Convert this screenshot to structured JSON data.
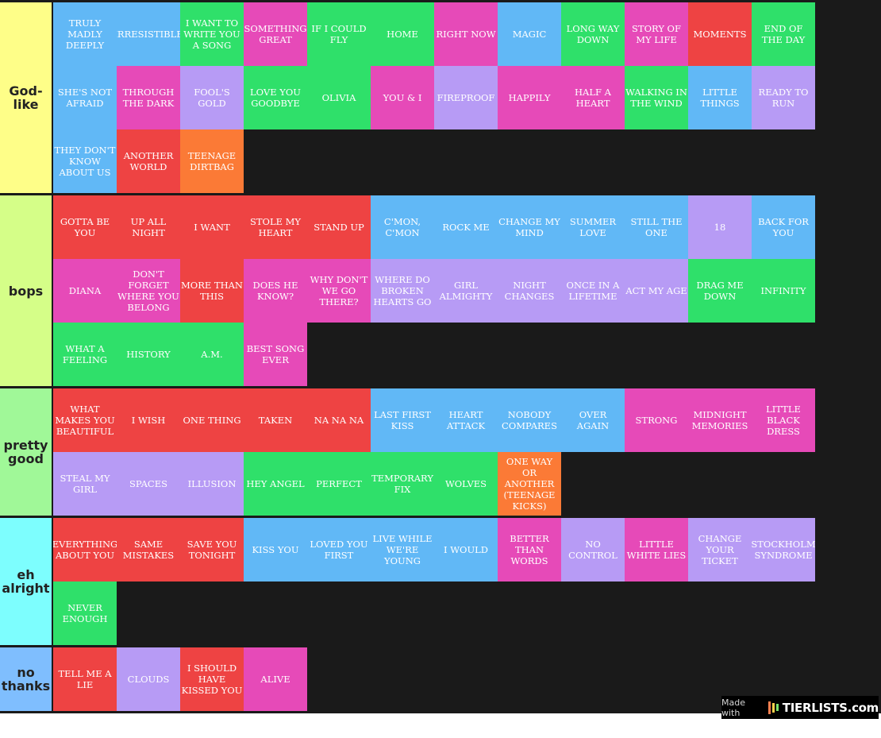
{
  "colors": {
    "blue": "#61b8f6",
    "purple": "#b79bf5",
    "green": "#2fe06a",
    "magenta": "#e64ab8",
    "red": "#ee4343",
    "orange": "#fb7a36"
  },
  "tiers": [
    {
      "label": "God-\nlike",
      "color": "#fefe88",
      "items": [
        {
          "text": "TRULY MADLY DEEPLY",
          "color": "blue"
        },
        {
          "text": "IRRESISTIBLE",
          "color": "blue"
        },
        {
          "text": "I WANT TO WRITE YOU A SONG",
          "color": "green"
        },
        {
          "text": "SOMETHING GREAT",
          "color": "magenta"
        },
        {
          "text": "IF I COULD FLY",
          "color": "green"
        },
        {
          "text": "HOME",
          "color": "green"
        },
        {
          "text": "RIGHT NOW",
          "color": "magenta"
        },
        {
          "text": "MAGIC",
          "color": "blue"
        },
        {
          "text": "LONG WAY DOWN",
          "color": "green"
        },
        {
          "text": "STORY OF MY LIFE",
          "color": "magenta"
        },
        {
          "text": "MOMENTS",
          "color": "red"
        },
        {
          "text": "END OF THE DAY",
          "color": "green"
        },
        {
          "text": "SHE'S NOT AFRAID",
          "color": "blue"
        },
        {
          "text": "THROUGH THE DARK",
          "color": "magenta"
        },
        {
          "text": "FOOL'S GOLD",
          "color": "purple"
        },
        {
          "text": "LOVE YOU GOODBYE",
          "color": "green"
        },
        {
          "text": "OLIVIA",
          "color": "green"
        },
        {
          "text": "YOU & I",
          "color": "magenta"
        },
        {
          "text": "FIREPROOF",
          "color": "purple"
        },
        {
          "text": "HAPPILY",
          "color": "magenta"
        },
        {
          "text": "HALF A HEART",
          "color": "magenta"
        },
        {
          "text": "WALKING IN THE WIND",
          "color": "green"
        },
        {
          "text": "LITTLE THINGS",
          "color": "blue"
        },
        {
          "text": "READY TO RUN",
          "color": "purple"
        },
        {
          "text": "THEY DON'T KNOW ABOUT US",
          "color": "blue"
        },
        {
          "text": "ANOTHER WORLD",
          "color": "red"
        },
        {
          "text": "TEENAGE DIRTBAG",
          "color": "orange"
        }
      ]
    },
    {
      "label": "bops",
      "color": "#d5fe88",
      "items": [
        {
          "text": "GOTTA BE YOU",
          "color": "red"
        },
        {
          "text": "UP ALL NIGHT",
          "color": "red"
        },
        {
          "text": "I WANT",
          "color": "red"
        },
        {
          "text": "STOLE MY HEART",
          "color": "red"
        },
        {
          "text": "STAND UP",
          "color": "red"
        },
        {
          "text": "C'MON, C'MON",
          "color": "blue"
        },
        {
          "text": "ROCK ME",
          "color": "blue"
        },
        {
          "text": "CHANGE MY MIND",
          "color": "blue"
        },
        {
          "text": "SUMMER LOVE",
          "color": "blue"
        },
        {
          "text": "STILL THE ONE",
          "color": "blue"
        },
        {
          "text": "18",
          "color": "purple"
        },
        {
          "text": "BACK FOR YOU",
          "color": "blue"
        },
        {
          "text": "DIANA",
          "color": "magenta"
        },
        {
          "text": "DON'T FORGET WHERE YOU BELONG",
          "color": "magenta"
        },
        {
          "text": "MORE THAN THIS",
          "color": "red"
        },
        {
          "text": "DOES HE KNOW?",
          "color": "magenta"
        },
        {
          "text": "WHY DON'T WE GO THERE?",
          "color": "magenta"
        },
        {
          "text": "WHERE DO BROKEN HEARTS GO",
          "color": "purple"
        },
        {
          "text": "GIRL ALMIGHTY",
          "color": "purple"
        },
        {
          "text": "NIGHT CHANGES",
          "color": "purple"
        },
        {
          "text": "ONCE IN A LIFETIME",
          "color": "purple"
        },
        {
          "text": "ACT MY AGE",
          "color": "purple"
        },
        {
          "text": "DRAG ME DOWN",
          "color": "green"
        },
        {
          "text": "INFINITY",
          "color": "green"
        },
        {
          "text": "WHAT A FEELING",
          "color": "green"
        },
        {
          "text": "HISTORY",
          "color": "green"
        },
        {
          "text": "A.M.",
          "color": "green"
        },
        {
          "text": "BEST SONG EVER",
          "color": "magenta"
        }
      ]
    },
    {
      "label": "pretty\ngood",
      "color": "#a0f898",
      "items": [
        {
          "text": "WHAT MAKES YOU BEAUTIFUL",
          "color": "red"
        },
        {
          "text": "I WISH",
          "color": "red"
        },
        {
          "text": "ONE THING",
          "color": "red"
        },
        {
          "text": "TAKEN",
          "color": "red"
        },
        {
          "text": "NA NA NA",
          "color": "red"
        },
        {
          "text": "LAST FIRST KISS",
          "color": "blue"
        },
        {
          "text": "HEART ATTACK",
          "color": "blue"
        },
        {
          "text": "NOBODY COMPARES",
          "color": "blue"
        },
        {
          "text": "OVER AGAIN",
          "color": "blue"
        },
        {
          "text": "STRONG",
          "color": "magenta"
        },
        {
          "text": "MIDNIGHT MEMORIES",
          "color": "magenta"
        },
        {
          "text": "LITTLE BLACK DRESS",
          "color": "magenta"
        },
        {
          "text": "STEAL MY GIRL",
          "color": "purple"
        },
        {
          "text": "SPACES",
          "color": "purple"
        },
        {
          "text": "ILLUSION",
          "color": "purple"
        },
        {
          "text": "HEY ANGEL",
          "color": "green"
        },
        {
          "text": "PERFECT",
          "color": "green"
        },
        {
          "text": "TEMPORARY FIX",
          "color": "green"
        },
        {
          "text": "WOLVES",
          "color": "green"
        },
        {
          "text": "ONE WAY OR ANOTHER (TEENAGE KICKS)",
          "color": "orange"
        }
      ]
    },
    {
      "label": "eh\nalright",
      "color": "#7dfefe",
      "items": [
        {
          "text": "EVERYTHING ABOUT YOU",
          "color": "red"
        },
        {
          "text": "SAME MISTAKES",
          "color": "red"
        },
        {
          "text": "SAVE YOU TONIGHT",
          "color": "red"
        },
        {
          "text": "KISS YOU",
          "color": "blue"
        },
        {
          "text": "LOVED YOU FIRST",
          "color": "blue"
        },
        {
          "text": "LIVE WHILE WE'RE YOUNG",
          "color": "blue"
        },
        {
          "text": "I WOULD",
          "color": "blue"
        },
        {
          "text": "BETTER THAN WORDS",
          "color": "magenta"
        },
        {
          "text": "NO CONTROL",
          "color": "purple"
        },
        {
          "text": "LITTLE WHITE LIES",
          "color": "magenta"
        },
        {
          "text": "CHANGE YOUR TICKET",
          "color": "purple"
        },
        {
          "text": "STOCKHOLM SYNDROME",
          "color": "purple"
        },
        {
          "text": "NEVER ENOUGH",
          "color": "green"
        }
      ]
    },
    {
      "label": "no\nthanks",
      "color": "#7fbefe",
      "items": [
        {
          "text": "TELL ME A LIE",
          "color": "red"
        },
        {
          "text": "CLOUDS",
          "color": "purple"
        },
        {
          "text": "I SHOULD HAVE KISSED YOU",
          "color": "red"
        },
        {
          "text": "ALIVE",
          "color": "magenta"
        }
      ]
    }
  ],
  "watermark": {
    "made_with": "Made with",
    "brand": "TIERLISTS.com"
  }
}
